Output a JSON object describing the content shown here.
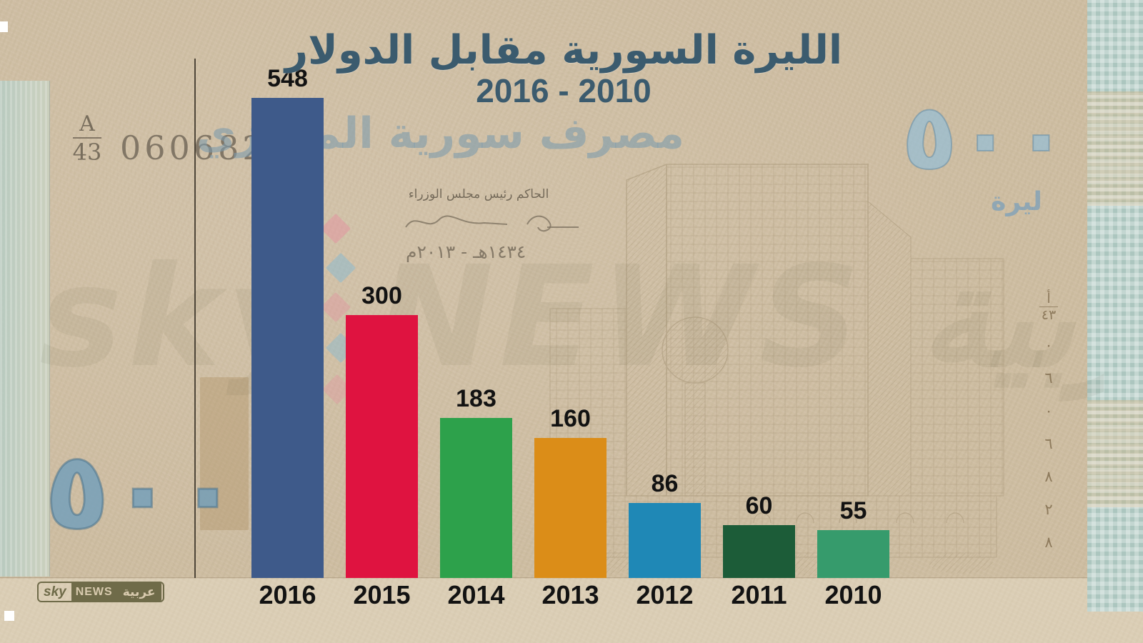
{
  "title": {
    "line1": "الليرة السورية مقابل الدولار",
    "line2": "2016 - 2010"
  },
  "chart_data": {
    "type": "bar",
    "title": "الليرة السورية مقابل الدولار",
    "subtitle": "2016 - 2010",
    "categories": [
      "2016",
      "2015",
      "2014",
      "2013",
      "2012",
      "2011",
      "2010"
    ],
    "values": [
      548,
      300,
      183,
      160,
      86,
      60,
      55
    ],
    "bar_colors": [
      "#3e5a8a",
      "#df1340",
      "#2da14b",
      "#db8d18",
      "#1f88b6",
      "#1c5c38",
      "#369b6c"
    ],
    "value_labels_shown": true,
    "xlabel": "",
    "ylabel": "",
    "ylim": [
      0,
      560
    ],
    "gridlines": false,
    "y_axis_line": true,
    "legend": "none"
  },
  "banknote": {
    "series_letter": "A",
    "series_number": "43",
    "serial_number": "0606828",
    "bank_name": "مصرف سورية المركزي",
    "signatures": "الحاكم      رئيس مجلس الوزراء",
    "date_line": "١٤٣٤هـ - ٢٠١٣م",
    "denomination": "٥٠٠",
    "currency_word": "ليرة",
    "vertical_serial": {
      "letter": "أ",
      "number": "٤٣",
      "digits": "٠ ٦ ٠ ٦ ٨ ٢ ٨"
    }
  },
  "watermark": {
    "text": "sky NEWS عربية"
  },
  "logo": {
    "sky": "sky",
    "news": "NEWS",
    "arabic": "عربية"
  },
  "colors": {
    "title": "#3b5b6e",
    "paper": "#d3c4aa",
    "olive_logo": "#6f6b49",
    "note_blue": "#8fb4c6",
    "axis": "#373026",
    "label": "#121212"
  }
}
